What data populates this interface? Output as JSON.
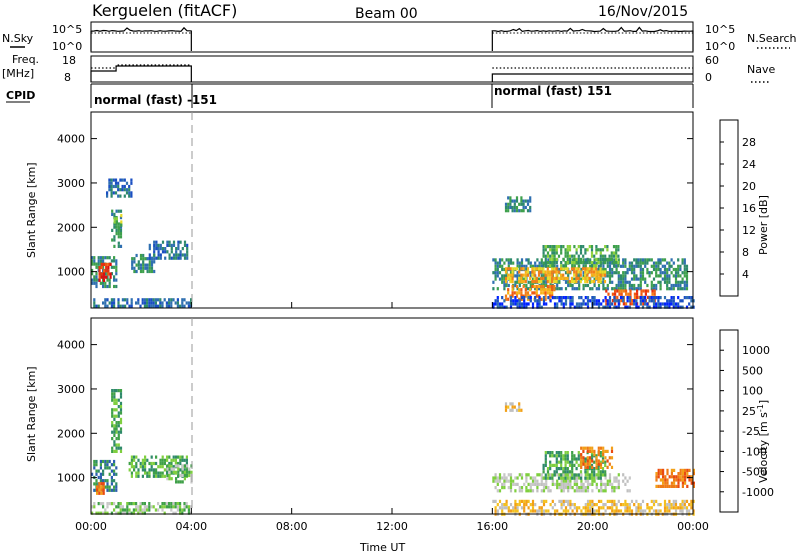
{
  "header": {
    "station": "Kerguelen (fitACF)",
    "beam": "Beam 00",
    "date": "16/Nov/2015"
  },
  "top_panels": {
    "nsky_label": "N.Sky",
    "nsearch_label": "N.Search",
    "nsky_ticks": [
      "10^5",
      "10^0"
    ],
    "freq_label_1": "Freq.",
    "freq_label_2": "[MHz]",
    "freq_ticks": [
      "18",
      "8"
    ],
    "nave_label": "Nave",
    "nave_ticks": [
      "60",
      "0"
    ],
    "cpid_label": "CPID",
    "cpid_segments": [
      {
        "label": "normal (fast) -151",
        "start": 0,
        "end": 4
      },
      {
        "label": "normal (fast) 151",
        "start": 16,
        "end": 24
      }
    ]
  },
  "colorbars": {
    "power": {
      "title": "Power [dB]",
      "ticks": [
        "4",
        "8",
        "12",
        "16",
        "20",
        "24",
        "28"
      ],
      "colors": [
        "#0022ff",
        "#1a4fc2",
        "#2f6fb0",
        "#2e8a6c",
        "#3ea04c",
        "#8ed23c",
        "#e8dc2a",
        "#f7b21a",
        "#f28019",
        "#ef5a12",
        "#e83010",
        "#dd0d0d"
      ]
    },
    "velocity": {
      "title": "Velocity [m s",
      "title_superscript": "-1",
      "title_end": "]",
      "ticks": [
        "1000",
        "500",
        "100",
        "25",
        "-25",
        "-100",
        "-500",
        "-1000"
      ],
      "colors": [
        "#1c3fd0",
        "#2c5fb0",
        "#2f8a6a",
        "#3fa048",
        "#7fcf3f",
        "#c8c8c8",
        "#c0c0c0",
        "#f4c020",
        "#f2a018",
        "#ef7a14",
        "#ea4a10",
        "#e01010"
      ]
    }
  },
  "axes": {
    "ylabel": "Slant Range [km]",
    "yticks": [
      "4000",
      "3000",
      "2000",
      "1000"
    ],
    "xticks": [
      "00:00",
      "04:00",
      "08:00",
      "12:00",
      "16:00",
      "20:00",
      "00:00"
    ],
    "xlabel": "Time UT"
  },
  "chart_data": [
    {
      "type": "heatmap",
      "name": "power",
      "x_range_hours": [
        0,
        24
      ],
      "y_range_km": [
        180,
        4600
      ],
      "clusters": [
        {
          "x0": 0.0,
          "x1": 1.0,
          "y0": 650,
          "y1": 1350,
          "level": 3
        },
        {
          "x0": 0.3,
          "x1": 0.8,
          "y0": 800,
          "y1": 1200,
          "level": 10
        },
        {
          "x0": 0.8,
          "x1": 1.2,
          "y0": 1600,
          "y1": 2400,
          "level": 3
        },
        {
          "x0": 0.9,
          "x1": 1.2,
          "y0": 2000,
          "y1": 2300,
          "level": 5
        },
        {
          "x0": 1.6,
          "x1": 2.5,
          "y0": 1000,
          "y1": 1400,
          "level": 3
        },
        {
          "x0": 2.3,
          "x1": 3.8,
          "y0": 1300,
          "y1": 1700,
          "level": 2
        },
        {
          "x0": 0.6,
          "x1": 1.6,
          "y0": 2700,
          "y1": 3100,
          "level": 2
        },
        {
          "x0": 0.0,
          "x1": 4.0,
          "y0": 200,
          "y1": 400,
          "level": 2
        },
        {
          "x0": 16.0,
          "x1": 23.8,
          "y0": 600,
          "y1": 1300,
          "level": 3
        },
        {
          "x0": 16.5,
          "x1": 20.5,
          "y0": 750,
          "y1": 1100,
          "level": 7
        },
        {
          "x0": 18.0,
          "x1": 21.0,
          "y0": 1100,
          "y1": 1600,
          "level": 4
        },
        {
          "x0": 16.5,
          "x1": 18.5,
          "y0": 400,
          "y1": 700,
          "level": 8
        },
        {
          "x0": 20.5,
          "x1": 22.5,
          "y0": 300,
          "y1": 600,
          "level": 9
        },
        {
          "x0": 16.5,
          "x1": 17.5,
          "y0": 2400,
          "y1": 2700,
          "level": 3
        },
        {
          "x0": 16.0,
          "x1": 24.0,
          "y0": 200,
          "y1": 450,
          "level": 1
        }
      ]
    },
    {
      "type": "heatmap",
      "name": "velocity",
      "x_range_hours": [
        0,
        24
      ],
      "y_range_km": [
        180,
        4600
      ],
      "clusters": [
        {
          "x0": 0.0,
          "x1": 1.0,
          "y0": 700,
          "y1": 1400,
          "level": 2
        },
        {
          "x0": 0.2,
          "x1": 0.6,
          "y0": 650,
          "y1": 900,
          "level": 9
        },
        {
          "x0": 0.8,
          "x1": 1.2,
          "y0": 1600,
          "y1": 3000,
          "level": 3
        },
        {
          "x0": 1.5,
          "x1": 3.8,
          "y0": 1000,
          "y1": 1500,
          "level": 3
        },
        {
          "x0": 3.0,
          "x1": 4.0,
          "y0": 900,
          "y1": 1300,
          "level": 4
        },
        {
          "x0": 0.0,
          "x1": 4.0,
          "y0": 200,
          "y1": 450,
          "level": 4
        },
        {
          "x0": 16.0,
          "x1": 21.5,
          "y0": 700,
          "y1": 1100,
          "level": 5
        },
        {
          "x0": 18.0,
          "x1": 20.5,
          "y0": 1000,
          "y1": 1600,
          "level": 3
        },
        {
          "x0": 19.5,
          "x1": 20.8,
          "y0": 1200,
          "y1": 1700,
          "level": 9
        },
        {
          "x0": 16.0,
          "x1": 24.0,
          "y0": 200,
          "y1": 500,
          "level": 7
        },
        {
          "x0": 22.5,
          "x1": 24.0,
          "y0": 800,
          "y1": 1200,
          "level": 9
        },
        {
          "x0": 16.5,
          "x1": 17.2,
          "y0": 2500,
          "y1": 2700,
          "level": 7
        }
      ]
    }
  ]
}
